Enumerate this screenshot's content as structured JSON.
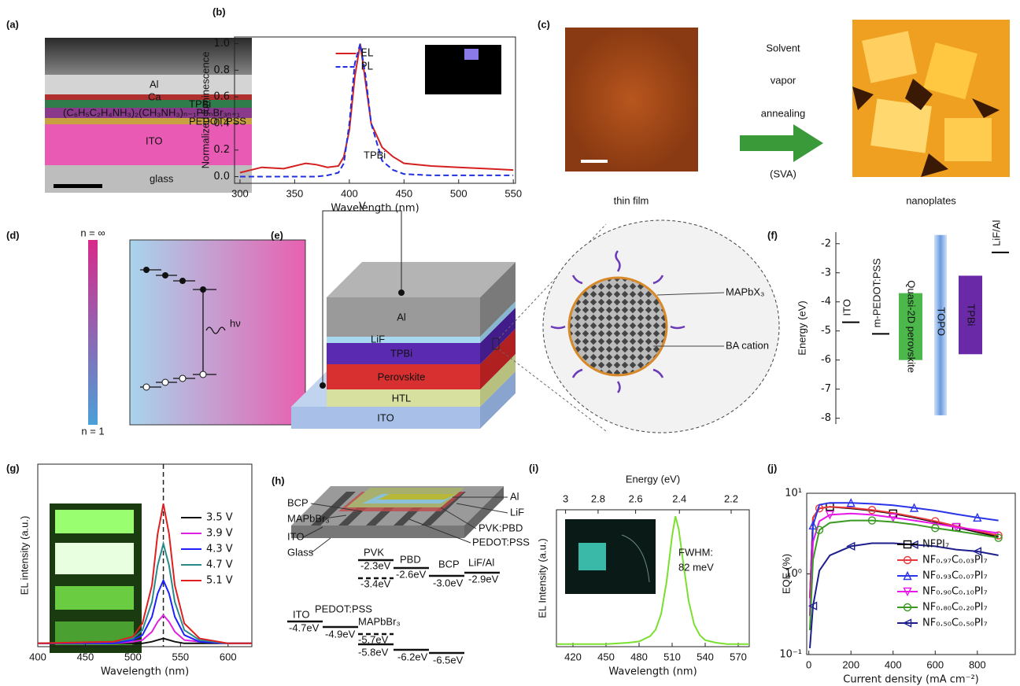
{
  "panels": {
    "a": {
      "label": "(a)",
      "layers": [
        "Al",
        "Ca",
        "TPBi",
        "(C₆H₅C₂H₄NH₃)₂(CH₃NH₃)ₙ₋₁PbₙBr₃ₙ₊₁",
        "PEDOT:PSS",
        "ITO",
        "glass"
      ]
    },
    "c": {
      "label": "(c)",
      "process": [
        "Solvent",
        "vapor",
        "annealing",
        "(SVA)"
      ],
      "before": "thin film",
      "after": "nanoplates"
    },
    "d": {
      "label": "(d)",
      "top": "n = ∞",
      "bottom": "n = 1",
      "emission": "hν"
    },
    "e": {
      "label": "(e)",
      "voltage": "V",
      "layers": [
        "Al",
        "LiF",
        "TPBi",
        "Perovskite",
        "HTL",
        "ITO"
      ],
      "callouts": [
        "MAPbX₃",
        "BA cation"
      ]
    },
    "h": {
      "label": "(h)",
      "device": [
        "BCP",
        "MAPbBr₃",
        "ITO",
        "Glass",
        "Al",
        "LiF",
        "PVK:PBD",
        "PEDOT:PSS"
      ],
      "materials": [
        "PVK",
        "PBD",
        "BCP",
        "LiF/Al",
        "ITO",
        "PEDOT:PSS",
        "MAPbBr₃"
      ],
      "levels": [
        "-2.3eV",
        "-3.4eV",
        "-2.6eV",
        "-3.0eV",
        "-2.9eV",
        "-4.7eV",
        "-4.9eV",
        "-5.7eV",
        "-5.8eV",
        "-6.2eV",
        "-6.5eV"
      ]
    }
  },
  "chart_data": [
    {
      "type": "line",
      "label": "(b)",
      "xlabel": "Wavelength (nm)",
      "ylabel": "Normalized luminescence",
      "x": [
        300,
        320,
        340,
        350,
        360,
        370,
        380,
        390,
        395,
        400,
        405,
        410,
        415,
        420,
        430,
        440,
        450,
        475,
        500,
        525,
        550
      ],
      "series": [
        {
          "name": "EL",
          "color": "#d42020",
          "dash": false,
          "values": [
            0.03,
            0.07,
            0.06,
            0.08,
            0.1,
            0.09,
            0.07,
            0.08,
            0.15,
            0.35,
            0.75,
            1.0,
            0.7,
            0.4,
            0.22,
            0.15,
            0.1,
            0.08,
            0.07,
            0.06,
            0.05
          ]
        },
        {
          "name": "PL",
          "color": "#2030e0",
          "dash": true,
          "values": [
            0,
            0,
            0,
            0,
            0,
            0,
            0.01,
            0.03,
            0.1,
            0.4,
            0.85,
            1.0,
            0.75,
            0.4,
            0.12,
            0.05,
            0.02,
            0.01,
            0.01,
            0.01,
            0.01
          ]
        }
      ],
      "annotations": [
        "TPBi"
      ],
      "xlim": [
        295,
        552
      ],
      "xticks": [
        300,
        350,
        400,
        450,
        500,
        550
      ],
      "ylim": [
        -0.05,
        1.05
      ],
      "yticks": [
        {
          "value": 0,
          "label": "0.0"
        },
        0.2,
        0.4,
        0.6,
        0.8,
        {
          "value": 1,
          "label": "1.0"
        }
      ],
      "legend": "upper left",
      "frame": true
    },
    {
      "type": "range_bar",
      "label": "(f)",
      "ylabel": "Energy (eV)",
      "categories": [
        "ITO",
        "m-PEDOT:PSS",
        "Quasi-2D perovskite",
        "TOPO",
        "TPBi",
        "LiF/Al"
      ],
      "high": [
        -4.7,
        -5.1,
        -3.7,
        -1.7,
        -3.1,
        -2.3
      ],
      "low": [
        null,
        null,
        -6.0,
        -7.9,
        -5.8,
        null
      ],
      "colors": [
        "#000000",
        "#000000",
        "#4cb84c",
        "#8aaee0",
        "#6a2aa8",
        "#000000"
      ],
      "ylim": [
        -8.2,
        -1.6
      ],
      "yticks": [
        -2,
        -3,
        -4,
        -5,
        -6,
        -7,
        -8
      ],
      "frame": false
    },
    {
      "type": "line",
      "label": "(g)",
      "xlabel": "Wavelength (nm)",
      "ylabel": "EL intensity (a.u.)",
      "x": [
        400,
        480,
        500,
        510,
        520,
        526,
        532,
        538,
        544,
        554,
        570,
        600,
        625
      ],
      "series": [
        {
          "name": "3.5 V",
          "color": "#111111",
          "values": [
            0.02,
            0.02,
            0.02,
            0.02,
            0.03,
            0.04,
            0.05,
            0.04,
            0.03,
            0.02,
            0.02,
            0.02,
            0.02
          ]
        },
        {
          "name": "3.9 V",
          "color": "#e020e0",
          "values": [
            0.02,
            0.02,
            0.03,
            0.04,
            0.09,
            0.15,
            0.19,
            0.15,
            0.09,
            0.04,
            0.03,
            0.02,
            0.02
          ]
        },
        {
          "name": "4.3 V",
          "color": "#2020ff",
          "values": [
            0.02,
            0.02,
            0.04,
            0.07,
            0.18,
            0.32,
            0.4,
            0.32,
            0.18,
            0.07,
            0.03,
            0.02,
            0.02
          ]
        },
        {
          "name": "4.7 V",
          "color": "#2a8a8a",
          "values": [
            0.02,
            0.03,
            0.05,
            0.1,
            0.27,
            0.49,
            0.62,
            0.49,
            0.27,
            0.1,
            0.04,
            0.02,
            0.02
          ]
        },
        {
          "name": "5.1 V",
          "color": "#e02020",
          "values": [
            0.02,
            0.03,
            0.06,
            0.14,
            0.37,
            0.68,
            0.86,
            0.68,
            0.37,
            0.14,
            0.05,
            0.02,
            0.02
          ]
        }
      ],
      "vline": 532,
      "xlim": [
        400,
        625
      ],
      "xticks": [
        400,
        450,
        500,
        550,
        600
      ],
      "ylim": [
        0,
        1.1
      ],
      "legend": "upper right",
      "frame": true
    },
    {
      "type": "line",
      "label": "(i)",
      "xlabel": "Wavelength (nm)",
      "ylabel": "EL Intensity (a.u.)",
      "x2label": "Energy (eV)",
      "x": [
        405,
        450,
        470,
        480,
        490,
        495,
        500,
        505,
        510,
        513,
        516,
        520,
        525,
        530,
        535,
        540,
        550,
        560,
        580
      ],
      "series": [
        {
          "color": "#7ae030",
          "values": [
            0.02,
            0.02,
            0.03,
            0.04,
            0.08,
            0.13,
            0.25,
            0.5,
            0.85,
            1,
            0.9,
            0.65,
            0.35,
            0.17,
            0.09,
            0.05,
            0.03,
            0.02,
            0.02
          ]
        }
      ],
      "annotations": [
        "FWHM:",
        "82 meV"
      ],
      "xlim": [
        405,
        580
      ],
      "xticks": [
        420,
        450,
        480,
        510,
        540,
        570
      ],
      "x2ticks": [
        3,
        2.8,
        2.6,
        2.4,
        2.2
      ],
      "ylim": [
        0,
        1.05
      ],
      "frame": true
    },
    {
      "type": "line",
      "label": "(j)",
      "xlabel": "Current density (mA cm⁻²)",
      "ylabel": "EQE (%)",
      "log_y": true,
      "x": [
        5,
        20,
        50,
        100,
        200,
        300,
        400,
        500,
        600,
        700,
        800,
        900
      ],
      "series": [
        {
          "name": "NFPI₇",
          "color": "#000000",
          "marker": "square",
          "values": [
            0.5,
            5,
            6.5,
            6.8,
            6.5,
            6.1,
            5.6,
            5,
            4.4,
            3.8,
            3.3,
            2.9
          ]
        },
        {
          "name": "NF₀.₉₇C₀.₀₃PI₇",
          "color": "#e8383d",
          "marker": "circle",
          "values": [
            0.5,
            5,
            6.5,
            6.8,
            6.6,
            6.2,
            5.7,
            5.1,
            4.5,
            3.9,
            3.4,
            3
          ]
        },
        {
          "name": "NF₀.₉₃C₀.₀₇PI₇",
          "color": "#2a35e8",
          "marker": "triangle",
          "values": [
            0.3,
            4,
            7.2,
            7.6,
            7.6,
            7.4,
            7.1,
            6.6,
            6.1,
            5.5,
            5,
            4.6
          ]
        },
        {
          "name": "NF₀.₉₀C₀.₁₀PI₇",
          "color": "#e816e8",
          "marker": "down",
          "values": [
            0.3,
            2.5,
            4.5,
            5.4,
            5.6,
            5.4,
            5,
            4.6,
            4.2,
            3.8,
            3.5,
            3.2
          ]
        },
        {
          "name": "NF₀.₈₀C₀.₂₀PI₇",
          "color": "#3a9a22",
          "marker": "circle",
          "values": [
            0.2,
            1.5,
            3.5,
            4.3,
            4.6,
            4.6,
            4.4,
            4.1,
            3.7,
            3.4,
            3.1,
            2.8
          ]
        },
        {
          "name": "NF₀.₅₀C₀.₅₀PI₇",
          "color": "#1e1e8c",
          "marker": "left",
          "values": [
            0.12,
            0.4,
            1.1,
            1.7,
            2.2,
            2.4,
            2.4,
            2.3,
            2.2,
            2,
            1.9,
            1.7
          ]
        }
      ],
      "xlim": [
        -10,
        980
      ],
      "xticks": [
        0,
        200,
        400,
        600,
        800
      ],
      "ylim": [
        0.1,
        10
      ],
      "yticks": [
        {
          "value": 0.1,
          "label": "10⁻¹"
        },
        {
          "value": 1,
          "label": "10⁰"
        },
        {
          "value": 10,
          "label": "10¹"
        }
      ],
      "legend": "lower right",
      "frame": true
    }
  ]
}
